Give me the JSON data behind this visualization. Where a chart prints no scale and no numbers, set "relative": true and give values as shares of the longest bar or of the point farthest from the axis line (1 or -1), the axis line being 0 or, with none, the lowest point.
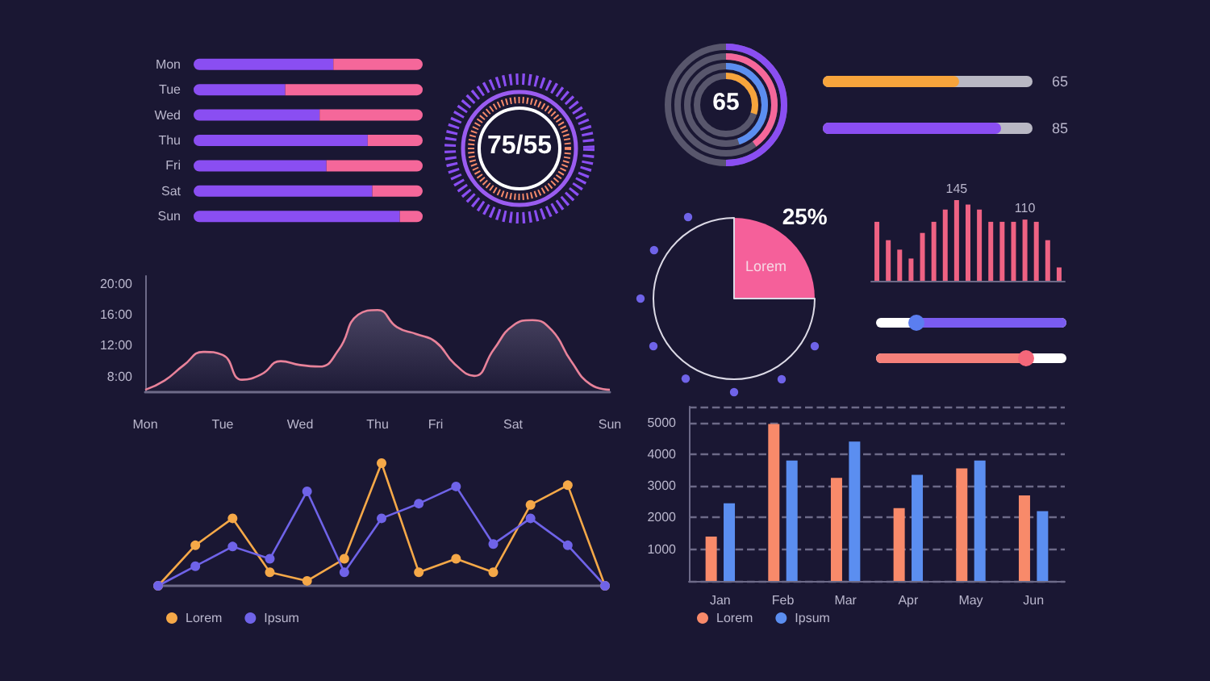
{
  "chart_data": [
    {
      "type": "bar",
      "orientation": "horizontal",
      "stacked": true,
      "relative": true,
      "categories": [
        "Mon",
        "Tue",
        "Wed",
        "Thu",
        "Fri",
        "Sat",
        "Sun"
      ],
      "series": [
        {
          "color": "#8a4ef2",
          "values": [
            0.61,
            0.4,
            0.55,
            0.76,
            0.58,
            0.78,
            0.9
          ]
        },
        {
          "color": "#f5679a",
          "values": [
            0.39,
            0.6,
            0.45,
            0.24,
            0.42,
            0.22,
            0.1
          ]
        }
      ]
    },
    {
      "type": "other",
      "annotations": [
        "75/55"
      ]
    },
    {
      "type": "other",
      "annotations": [
        "65"
      ]
    },
    {
      "type": "bar",
      "orientation": "horizontal",
      "categories": [
        null,
        null
      ],
      "values": [
        65,
        85
      ],
      "colors": [
        "#f7a43c",
        "#8a4ef2"
      ],
      "xlim": [
        0,
        100
      ],
      "data_labels": true
    },
    {
      "type": "pie",
      "categories": [
        "Lorem",
        null
      ],
      "values": [
        25,
        75
      ],
      "colors": [
        "#f5609a",
        "#1a1733"
      ],
      "value_labels": [
        "25%",
        null
      ]
    },
    {
      "type": "bar",
      "categories": [
        null,
        null,
        null,
        null,
        null,
        null,
        null,
        null,
        null,
        null,
        null,
        null,
        null,
        null,
        null,
        null,
        null
      ],
      "values": [
        106,
        73,
        56,
        40,
        86,
        106,
        128,
        145,
        137,
        128,
        106,
        106,
        106,
        110,
        106,
        73,
        24
      ],
      "value_labels": [
        null,
        null,
        null,
        null,
        null,
        null,
        null,
        "145",
        null,
        null,
        null,
        null,
        null,
        "110",
        null,
        null,
        null
      ],
      "color": "#ef6283"
    },
    {
      "type": "area",
      "categories": [
        "Mon",
        null,
        null,
        null,
        "Tue",
        null,
        null,
        null,
        "Wed",
        null,
        null,
        null,
        "Thu",
        null,
        null,
        "Fri",
        null,
        null,
        null,
        "Sat",
        null,
        null,
        null,
        null,
        "Sun"
      ],
      "values": [
        6.3,
        7.5,
        9.5,
        11.2,
        10.8,
        7.6,
        8.3,
        10.0,
        9.5,
        9.3,
        11.5,
        16.0,
        16.6,
        14.4,
        13.5,
        12.5,
        9.6,
        8.1,
        11.5,
        14.6,
        15.3,
        14.0,
        10.0,
        7.0,
        6.3
      ],
      "color": "#e8829a",
      "ylim": [
        6,
        21
      ],
      "yticks": [
        {
          "value": 8,
          "label": "8:00"
        },
        {
          "value": 12,
          "label": "12:00"
        },
        {
          "value": 16,
          "label": "16:00"
        },
        {
          "value": 20,
          "label": "20:00"
        }
      ],
      "marker": "none"
    },
    {
      "type": "line",
      "relative": true,
      "marker": "circle",
      "legend": "bottom left",
      "categories": [
        null,
        null,
        null,
        null,
        null,
        null,
        null,
        null,
        null,
        null,
        null,
        null,
        null
      ],
      "series": [
        {
          "name": "Lorem",
          "color": "#f5a848",
          "values": [
            0,
            0.33,
            0.55,
            0.11,
            0.04,
            0.22,
            1,
            0.11,
            0.22,
            0.11,
            0.66,
            0.82,
            0
          ]
        },
        {
          "name": "Ipsum",
          "color": "#6f63e8",
          "values": [
            0,
            0.16,
            0.32,
            0.22,
            0.77,
            0.11,
            0.55,
            0.67,
            0.81,
            0.34,
            0.55,
            0.33,
            0
          ]
        }
      ]
    },
    {
      "type": "bar",
      "categories": [
        "Jan",
        "Feb",
        "Mar",
        "Apr",
        "May",
        "Jun"
      ],
      "ylim": [
        0,
        5500
      ],
      "yticks": [
        1000,
        2000,
        3000,
        4000,
        5000
      ],
      "grid": "y",
      "legend": "bottom left",
      "series": [
        {
          "name": "Lorem",
          "color": "#f88a6a",
          "values": [
            1400,
            4950,
            3250,
            2300,
            3550,
            2700
          ]
        },
        {
          "name": "Ipsum",
          "color": "#5b8ef0",
          "values": [
            2450,
            3800,
            4400,
            3350,
            3800,
            2200
          ]
        }
      ]
    }
  ]
}
